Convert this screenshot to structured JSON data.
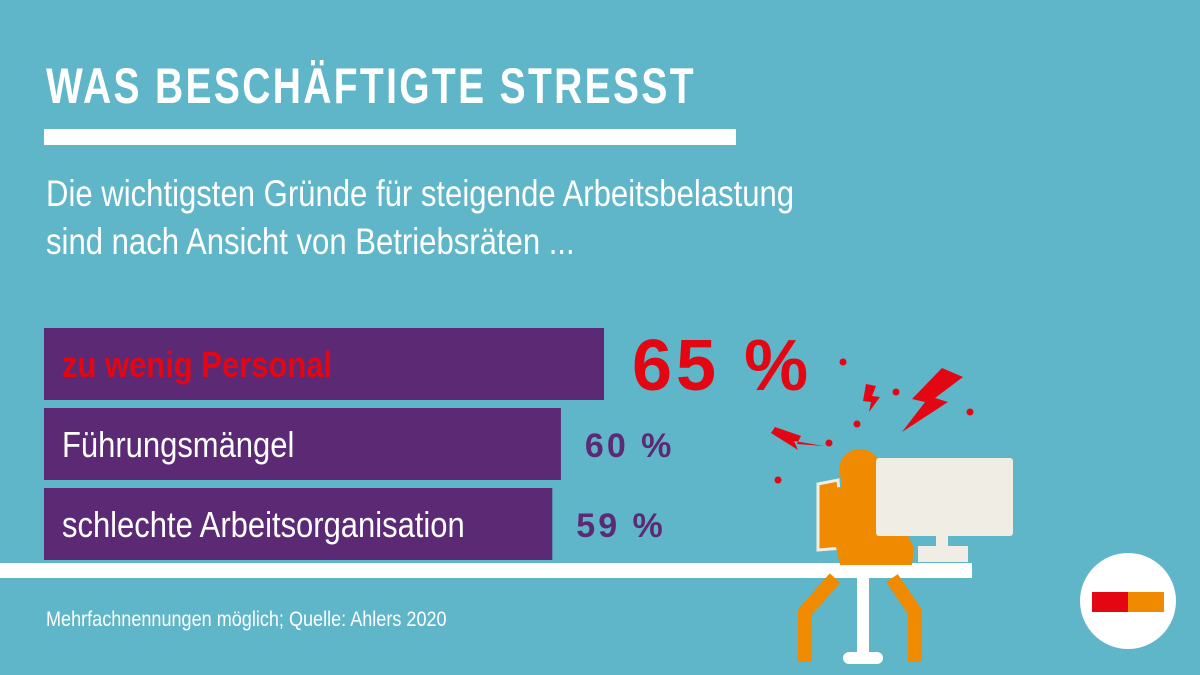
{
  "header": {
    "title": "WAS BESCHÄFTIGTE STRESST",
    "subtitle_line1": "Die wichtigsten Gründe für steigende Arbeitsbelastung",
    "subtitle_line2": "sind nach Ansicht von Betriebsräten ..."
  },
  "chart_data": {
    "type": "bar",
    "orientation": "horizontal",
    "categories": [
      "zu wenig Personal",
      "Führungsmängel",
      "schlechte Arbeitsorganisation"
    ],
    "values": [
      65,
      60,
      59
    ],
    "value_labels": [
      "65 %",
      "60 %",
      "59 %"
    ],
    "highlight_index": 0,
    "unit": "%",
    "xlim": [
      0,
      65
    ]
  },
  "footer": {
    "note": "Mehrfachnennungen möglich; Quelle: Ahlers 2020"
  },
  "colors": {
    "background": "#5fb6c9",
    "bar": "#5c2a74",
    "highlight_text": "#e30613",
    "value_text": "#5c2a74",
    "figure": "#f08a00",
    "monitor": "#f0ede4",
    "stress_marks": "#e30613"
  },
  "logo": {
    "icon": "logo-mark-icon"
  }
}
